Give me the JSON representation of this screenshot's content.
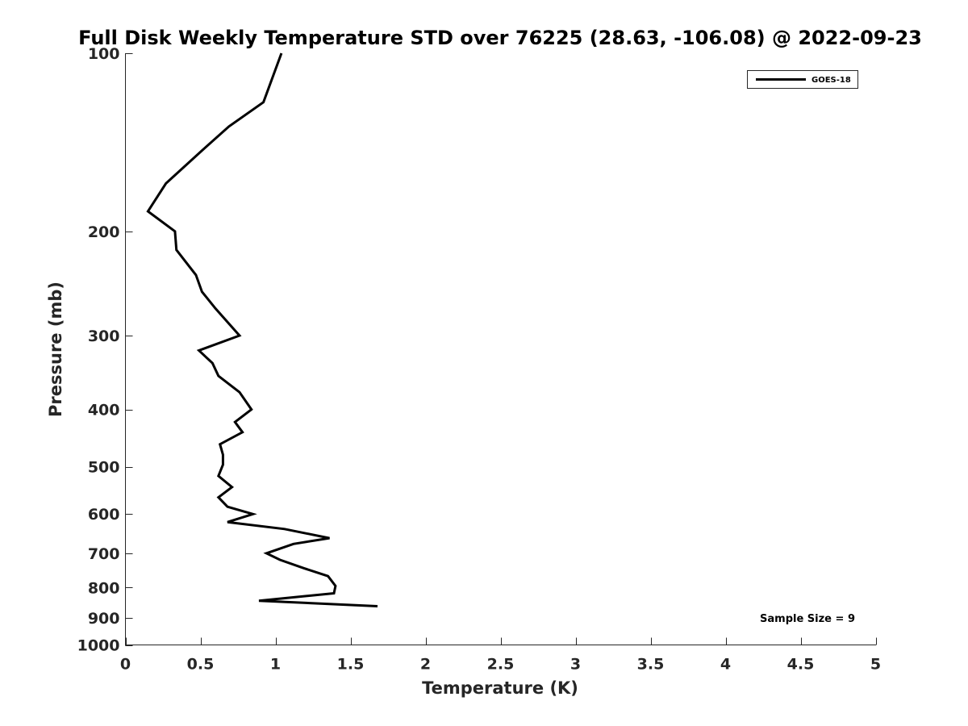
{
  "chart_data": {
    "type": "line",
    "title": "Full Disk Weekly Temperature STD over 76225 (28.63, -106.08) @ 2022-09-23",
    "xlabel": "Temperature (K)",
    "ylabel": "Pressure (mb)",
    "xlim": [
      0,
      5
    ],
    "ylim": [
      100,
      1000
    ],
    "y_scale": "log",
    "y_reversed": true,
    "grid": false,
    "legend_position": "top-right",
    "x_ticks": [
      0,
      0.5,
      1,
      1.5,
      2,
      2.5,
      3,
      3.5,
      4,
      4.5,
      5
    ],
    "x_tick_labels": [
      "0",
      "0.5",
      "1",
      "1.5",
      "2",
      "2.5",
      "3",
      "3.5",
      "4",
      "4.5",
      "5"
    ],
    "y_ticks": [
      100,
      200,
      300,
      400,
      500,
      600,
      700,
      800,
      900,
      1000
    ],
    "y_tick_labels": [
      "100",
      "200",
      "300",
      "400",
      "500",
      "600",
      "700",
      "800",
      "900",
      "1000"
    ],
    "series": [
      {
        "name": "GOES-18",
        "color": "#000000",
        "points": [
          {
            "x": 1.04,
            "y": 100
          },
          {
            "x": 0.92,
            "y": 121
          },
          {
            "x": 0.69,
            "y": 133
          },
          {
            "x": 0.51,
            "y": 146
          },
          {
            "x": 0.27,
            "y": 166
          },
          {
            "x": 0.15,
            "y": 185
          },
          {
            "x": 0.33,
            "y": 200
          },
          {
            "x": 0.34,
            "y": 215
          },
          {
            "x": 0.47,
            "y": 237
          },
          {
            "x": 0.51,
            "y": 253
          },
          {
            "x": 0.6,
            "y": 270
          },
          {
            "x": 0.76,
            "y": 300
          },
          {
            "x": 0.49,
            "y": 318
          },
          {
            "x": 0.58,
            "y": 334
          },
          {
            "x": 0.62,
            "y": 351
          },
          {
            "x": 0.76,
            "y": 374
          },
          {
            "x": 0.84,
            "y": 400
          },
          {
            "x": 0.73,
            "y": 420
          },
          {
            "x": 0.78,
            "y": 437
          },
          {
            "x": 0.63,
            "y": 458
          },
          {
            "x": 0.65,
            "y": 477
          },
          {
            "x": 0.65,
            "y": 496
          },
          {
            "x": 0.62,
            "y": 518
          },
          {
            "x": 0.71,
            "y": 541
          },
          {
            "x": 0.62,
            "y": 563
          },
          {
            "x": 0.68,
            "y": 584
          },
          {
            "x": 0.85,
            "y": 601
          },
          {
            "x": 0.68,
            "y": 620
          },
          {
            "x": 1.06,
            "y": 637
          },
          {
            "x": 1.36,
            "y": 660
          },
          {
            "x": 1.12,
            "y": 675
          },
          {
            "x": 0.94,
            "y": 700
          },
          {
            "x": 1.03,
            "y": 718
          },
          {
            "x": 1.19,
            "y": 742
          },
          {
            "x": 1.35,
            "y": 765
          },
          {
            "x": 1.4,
            "y": 795
          },
          {
            "x": 1.39,
            "y": 818
          },
          {
            "x": 0.89,
            "y": 842
          },
          {
            "x": 1.68,
            "y": 860
          }
        ]
      }
    ],
    "annotation": "Sample Size = 9"
  }
}
